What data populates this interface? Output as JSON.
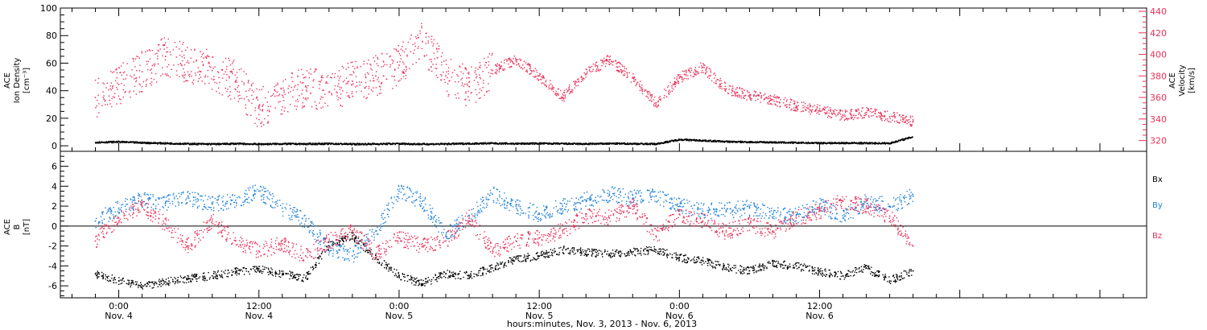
{
  "chart_data": [
    {
      "type": "scatter",
      "panel": "top",
      "ylabel_left": [
        "ACE",
        "Ion Density",
        "[cm⁻³]"
      ],
      "ylabel_right": [
        "ACE",
        "Velocity",
        "[km/s]"
      ],
      "ylim_left": [
        -4,
        100
      ],
      "ylim_right": [
        310,
        443
      ],
      "yticks_left": [
        0,
        20,
        40,
        60,
        80,
        100
      ],
      "yticks_right": [
        320,
        340,
        360,
        380,
        400,
        420,
        440
      ],
      "series": [
        {
          "name": "Velocity",
          "axis": "right",
          "color": "#e8325a",
          "x": [
            -2,
            0,
            2,
            4,
            6,
            8,
            10,
            12,
            14,
            16,
            18,
            20,
            22,
            24,
            26,
            28,
            30,
            32,
            34,
            36,
            38,
            40,
            42,
            44,
            46,
            48,
            50,
            52,
            54,
            56,
            58,
            60,
            62,
            64,
            66,
            68
          ],
          "y": [
            360,
            372,
            384,
            398,
            392,
            385,
            375,
            350,
            362,
            370,
            365,
            375,
            380,
            390,
            412,
            380,
            370,
            385,
            395,
            380,
            360,
            382,
            395,
            378,
            355,
            378,
            388,
            368,
            362,
            358,
            352,
            348,
            343,
            346,
            342,
            338
          ]
        },
        {
          "name": "Ion Density",
          "axis": "left",
          "color": "#000000",
          "x": [
            -2,
            0,
            2,
            4,
            6,
            8,
            10,
            12,
            14,
            16,
            18,
            20,
            22,
            24,
            26,
            28,
            30,
            32,
            34,
            36,
            38,
            40,
            42,
            44,
            46,
            48,
            50,
            52,
            54,
            56,
            58,
            60,
            62,
            64,
            66,
            68
          ],
          "y": [
            2.5,
            2.8,
            2.2,
            1.8,
            1.4,
            1.2,
            1.5,
            1.2,
            1.4,
            1.3,
            1.5,
            1.2,
            1.3,
            1.5,
            1.2,
            1.3,
            1.6,
            1.8,
            1.5,
            1.7,
            1.5,
            1.3,
            1.6,
            1.5,
            1.3,
            4.5,
            3.8,
            3.0,
            2.7,
            2.5,
            2.2,
            2.0,
            2.0,
            1.9,
            1.8,
            6.5
          ]
        }
      ]
    },
    {
      "type": "scatter",
      "panel": "bottom",
      "ylabel_left": [
        "ACE",
        "B",
        "[nT]"
      ],
      "ylim": [
        -7.2,
        7.5
      ],
      "yticks": [
        -6,
        -4,
        -2,
        0,
        2,
        4,
        6
      ],
      "x_tick_labels": [
        {
          "t": "0:00",
          "d": "Nov. 4"
        },
        {
          "t": "12:00",
          "d": "Nov. 4"
        },
        {
          "t": "0:00",
          "d": "Nov. 5"
        },
        {
          "t": "12:00",
          "d": "Nov. 5"
        },
        {
          "t": "0:00",
          "d": "Nov. 6"
        },
        {
          "t": "12:00",
          "d": "Nov. 6"
        }
      ],
      "legend_labels": [
        "Bx",
        "By",
        "Bz"
      ],
      "series": [
        {
          "name": "Bx",
          "color": "#000000",
          "x": [
            -2,
            0,
            2,
            4,
            6,
            8,
            10,
            12,
            14,
            16,
            18,
            20,
            22,
            24,
            26,
            28,
            30,
            32,
            34,
            36,
            38,
            40,
            42,
            44,
            46,
            48,
            50,
            52,
            54,
            56,
            58,
            60,
            62,
            64,
            66,
            68
          ],
          "y": [
            -4.8,
            -5.5,
            -6.0,
            -5.6,
            -5.3,
            -5.0,
            -4.6,
            -4.3,
            -4.8,
            -5.2,
            -2.0,
            -1.0,
            -3.2,
            -5.0,
            -5.8,
            -4.8,
            -5.0,
            -4.2,
            -3.3,
            -3.0,
            -2.4,
            -2.6,
            -2.8,
            -2.6,
            -2.4,
            -3.2,
            -3.5,
            -4.2,
            -4.5,
            -3.8,
            -4.0,
            -4.6,
            -5.0,
            -4.2,
            -5.5,
            -4.5
          ]
        },
        {
          "name": "By",
          "color": "#1f80d8",
          "x": [
            -2,
            0,
            2,
            4,
            6,
            8,
            10,
            12,
            14,
            16,
            18,
            20,
            22,
            24,
            26,
            28,
            30,
            32,
            34,
            36,
            38,
            40,
            42,
            44,
            46,
            48,
            50,
            52,
            54,
            56,
            58,
            60,
            62,
            64,
            66,
            68
          ],
          "y": [
            0.5,
            1.8,
            2.6,
            2.3,
            2.8,
            2.2,
            2.6,
            3.5,
            1.8,
            0.5,
            -2.2,
            -3.0,
            -0.5,
            3.5,
            2.5,
            -1.0,
            1.0,
            3.2,
            2.0,
            1.2,
            2.0,
            2.6,
            3.2,
            2.8,
            3.0,
            2.0,
            1.5,
            1.6,
            1.8,
            1.2,
            1.0,
            2.2,
            0.8,
            2.5,
            2.0,
            3.0
          ]
        },
        {
          "name": "Bz",
          "color": "#e8325a",
          "x": [
            -2,
            0,
            2,
            4,
            6,
            8,
            10,
            12,
            14,
            16,
            18,
            20,
            22,
            24,
            26,
            28,
            30,
            32,
            34,
            36,
            38,
            40,
            42,
            44,
            46,
            48,
            50,
            52,
            54,
            56,
            58,
            60,
            62,
            64,
            66,
            68
          ],
          "y": [
            -1.5,
            0.8,
            2.0,
            0.2,
            -2.0,
            0.5,
            -1.5,
            -2.5,
            -1.8,
            -3.0,
            -1.5,
            -0.5,
            -2.8,
            -1.2,
            -2.0,
            -1.5,
            0.8,
            -2.5,
            -1.5,
            -1.2,
            -0.5,
            1.0,
            0.8,
            2.0,
            -1.0,
            1.2,
            0.5,
            -0.6,
            0.2,
            -0.5,
            0.8,
            1.5,
            2.5,
            2.0,
            1.0,
            -2.0
          ]
        }
      ]
    }
  ],
  "xlabel": "hours:minutes, Nov.  3, 2013 - Nov.  6, 2013"
}
